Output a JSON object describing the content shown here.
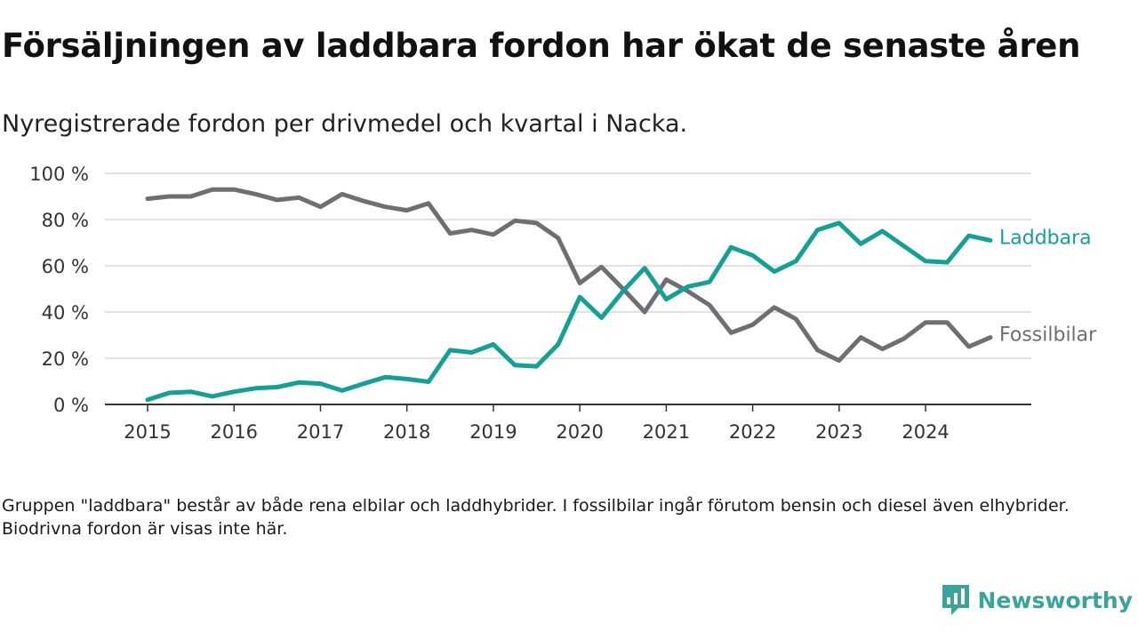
{
  "header": {
    "title": "Försäljningen av laddbara fordon har ökat de senaste åren",
    "subtitle": "Nyregistrerade fordon per drivmedel och kvartal i Nacka."
  },
  "note": "Gruppen \"laddbara\" består av både rena elbilar och laddhybrider. I fossilbilar ingår förutom bensin och diesel även elhybrider. Biodrivna fordon är visas inte här.",
  "logo": {
    "text": "Newsworthy",
    "color": "#3aa39a"
  },
  "chart_data": {
    "type": "line",
    "title": "Försäljningen av laddbara fordon har ökat de senaste åren",
    "subtitle": "Nyregistrerade fordon per drivmedel och kvartal i Nacka.",
    "xlabel": "",
    "ylabel": "",
    "ylim": [
      0,
      100
    ],
    "yticks": [
      0,
      20,
      40,
      60,
      80,
      100
    ],
    "ytick_labels": [
      "0 %",
      "20 %",
      "40 %",
      "60 %",
      "80 %",
      "100 %"
    ],
    "xlim": [
      2015,
      2024.75
    ],
    "xticks": [
      2015,
      2016,
      2017,
      2018,
      2019,
      2020,
      2021,
      2022,
      2023,
      2024
    ],
    "xtick_labels": [
      "2015",
      "2016",
      "2017",
      "2018",
      "2019",
      "2020",
      "2021",
      "2022",
      "2023",
      "2024"
    ],
    "grid": true,
    "legend": "line-end labels",
    "x": [
      2015,
      2015.25,
      2015.5,
      2015.75,
      2016,
      2016.25,
      2016.5,
      2016.75,
      2017,
      2017.25,
      2017.5,
      2017.75,
      2018,
      2018.25,
      2018.5,
      2018.75,
      2019,
      2019.25,
      2019.5,
      2019.75,
      2020,
      2020.25,
      2020.5,
      2020.75,
      2021,
      2021.25,
      2021.5,
      2021.75,
      2022,
      2022.25,
      2022.5,
      2022.75,
      2023,
      2023.25,
      2023.5,
      2023.75,
      2024,
      2024.25,
      2024.5,
      2024.75
    ],
    "series": [
      {
        "name": "Laddbara",
        "color": "#14a094",
        "values": [
          2,
          5,
          5.5,
          3.5,
          5.5,
          7,
          7.5,
          9.5,
          9,
          6,
          9,
          11.8,
          11,
          9.8,
          23.5,
          22.5,
          26,
          17,
          16.5,
          26,
          46.5,
          37.5,
          49,
          59,
          45.5,
          51,
          53,
          68,
          64.5,
          57.5,
          62,
          75.5,
          78.5,
          69.5,
          75,
          68.5,
          62,
          61.5,
          73,
          71
        ]
      },
      {
        "name": "Fossilbilar",
        "color": "#6f6e75",
        "values": [
          89,
          90,
          90,
          93,
          93,
          91,
          88.5,
          89.5,
          85.5,
          91,
          88,
          85.5,
          84,
          87,
          74,
          75.5,
          73.5,
          79.5,
          78.5,
          72,
          52.5,
          59.5,
          50,
          40,
          54,
          49,
          43,
          31,
          34.5,
          42,
          37,
          23.5,
          19,
          29,
          24,
          28.5,
          35.5,
          35.5,
          25,
          29
        ]
      }
    ]
  }
}
